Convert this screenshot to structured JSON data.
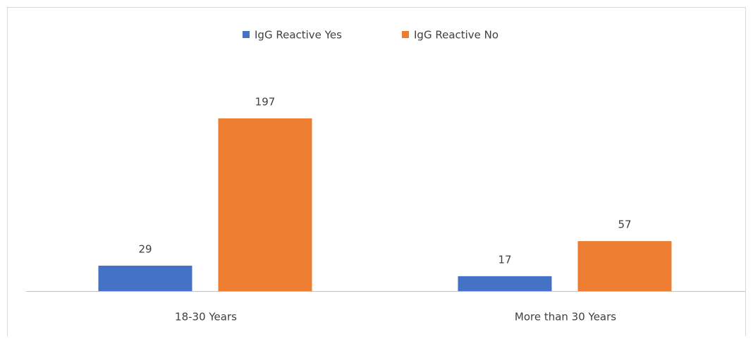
{
  "chart_data": {
    "type": "bar",
    "categories": [
      "18-30 Years",
      "More than 30 Years"
    ],
    "series": [
      {
        "name": "IgG Reactive Yes",
        "color": "#4472c4",
        "values": [
          29,
          17
        ]
      },
      {
        "name": "IgG Reactive No",
        "color": "#ed7d31",
        "values": [
          197,
          57
        ]
      }
    ],
    "legend": "top"
  }
}
